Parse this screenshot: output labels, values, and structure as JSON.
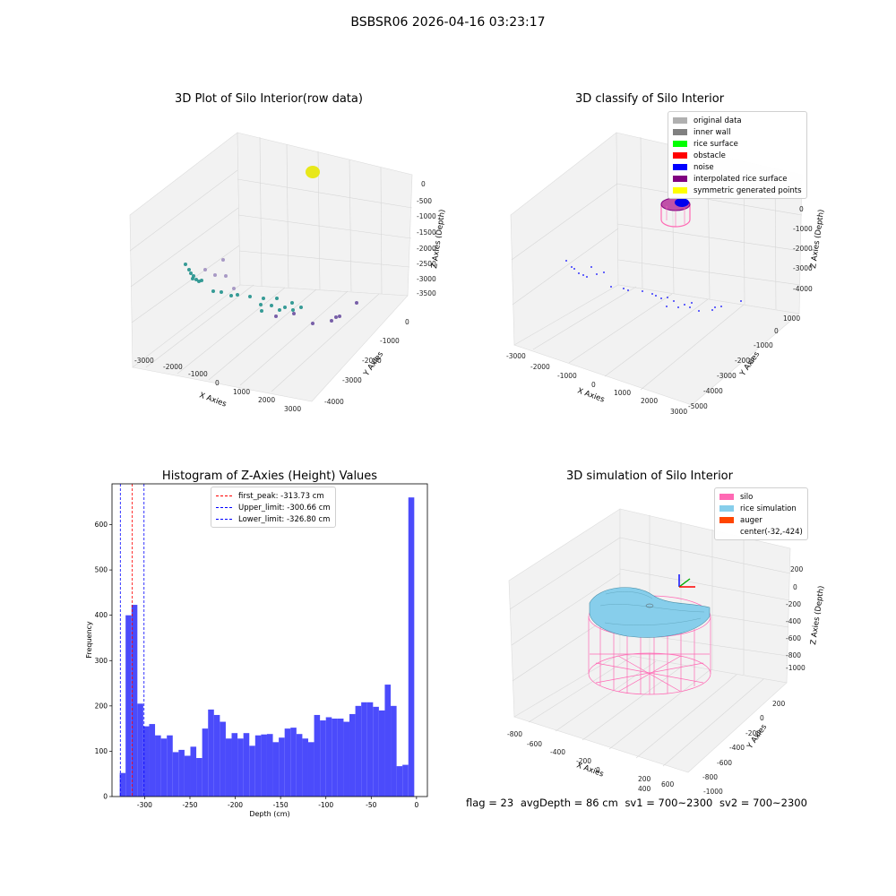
{
  "suptitle": "BSBSR06 2026-04-16 03:23:17",
  "status": {
    "flag": "flag = 23",
    "avg_depth": "avgDepth = 86 cm",
    "sv1": "sv1 = 700~2300",
    "sv2": "sv2 = 700~2300"
  },
  "colors": {
    "histogram_bar": "#4b4bfb",
    "first_peak_line": "#ff0000",
    "limit_line": "#0000ff",
    "silo": "#ff69b4",
    "rice_simulation": "#87ceeb",
    "auger": "#ff4500",
    "row_points": [
      "#21918c",
      "#5ec962",
      "#3b528b",
      "#440154"
    ]
  },
  "chart_data": [
    {
      "type": "scatter",
      "projection": "3d",
      "title": "3D Plot of Silo Interior(row data)",
      "xlabel": "X Axies",
      "ylabel": "Y Axies",
      "zlabel": "Z Axies (Depth)",
      "xticks": [
        "-3000",
        "-2000",
        "-1000",
        "0",
        "1000",
        "2000",
        "3000"
      ],
      "yticks": [
        "0",
        "-1000",
        "-2000",
        "-3000",
        "-4000"
      ],
      "zticks": [
        "0",
        "-500",
        "-1000",
        "-1500",
        "-2000",
        "-2500",
        "-3000",
        "-3500"
      ],
      "grid": true
    },
    {
      "type": "scatter",
      "projection": "3d",
      "title": "3D classify of Silo Interior",
      "xlabel": "X Axies",
      "ylabel": "Y Axies",
      "zlabel": "Z Axies (Depth)",
      "xticks": [
        "-3000",
        "-2000",
        "-1000",
        "0",
        "1000",
        "2000",
        "3000"
      ],
      "yticks": [
        "1000",
        "0",
        "-1000",
        "-2000",
        "-3000",
        "-4000",
        "-5000"
      ],
      "zticks": [
        "0",
        "-1000",
        "-2000",
        "-3000",
        "-4000"
      ],
      "legend_position": "top-right",
      "legend": [
        {
          "label": "original data",
          "color": "#b0b0b0"
        },
        {
          "label": "inner wall",
          "color": "#808080"
        },
        {
          "label": "rice surface",
          "color": "#00ff00"
        },
        {
          "label": "obstacle",
          "color": "#ff0000"
        },
        {
          "label": "noise",
          "color": "#0000ff"
        },
        {
          "label": "interpolated rice surface",
          "color": "#800080"
        },
        {
          "label": "symmetric generated points",
          "color": "#ffff00"
        }
      ],
      "grid": true
    },
    {
      "type": "bar",
      "title": "Histogram of Z-Axies (Height) Values",
      "xlabel": "Depth (cm)",
      "ylabel": "Frequency",
      "xlim": [
        -336,
        12
      ],
      "ylim": [
        0,
        690
      ],
      "xticks": [
        -300,
        -250,
        -200,
        -150,
        -100,
        -50,
        0
      ],
      "yticks": [
        0,
        100,
        200,
        300,
        400,
        500,
        600
      ],
      "bin_start": -327.5,
      "bin_width": 6.5,
      "values": [
        52,
        400,
        423,
        205,
        155,
        160,
        135,
        128,
        135,
        98,
        103,
        90,
        110,
        85,
        150,
        192,
        180,
        165,
        128,
        140,
        128,
        140,
        112,
        135,
        137,
        138,
        120,
        130,
        150,
        152,
        138,
        128,
        120,
        180,
        168,
        175,
        172,
        172,
        165,
        182,
        200,
        208,
        208,
        198,
        190,
        247,
        200,
        67,
        70,
        660
      ],
      "reference_lines": [
        {
          "label": "first_peak: -313.73 cm",
          "x": -313.73,
          "color": "#ff0000"
        },
        {
          "label": "Upper_limit: -300.66 cm",
          "x": -300.66,
          "color": "#0000ff"
        },
        {
          "label": "Lower_limit: -326.80 cm",
          "x": -326.8,
          "color": "#0000ff"
        }
      ],
      "legend_position": "top-center",
      "grid": false
    },
    {
      "type": "3d-surface",
      "title": "3D simulation of Silo Interior",
      "xlabel": "X Axies",
      "ylabel": "Y Axies",
      "zlabel": "Z Axies (Depth)",
      "xticks": [
        "-800",
        "-600",
        "-400",
        "-200",
        "0",
        "200",
        "400",
        "600"
      ],
      "yticks": [
        "200",
        "0",
        "-200",
        "-400",
        "-600",
        "-800",
        "-1000"
      ],
      "zticks": [
        "200",
        "0",
        "-200",
        "-400",
        "-600",
        "-800",
        "-1000"
      ],
      "legend_position": "top-right",
      "legend": [
        {
          "label": "silo",
          "color": "#ff69b4"
        },
        {
          "label": "rice simulation",
          "color": "#87ceeb"
        },
        {
          "label": "auger",
          "color": "#ff4500"
        },
        {
          "label": "center(-32,-424)",
          "color": ""
        }
      ],
      "grid": true
    }
  ]
}
